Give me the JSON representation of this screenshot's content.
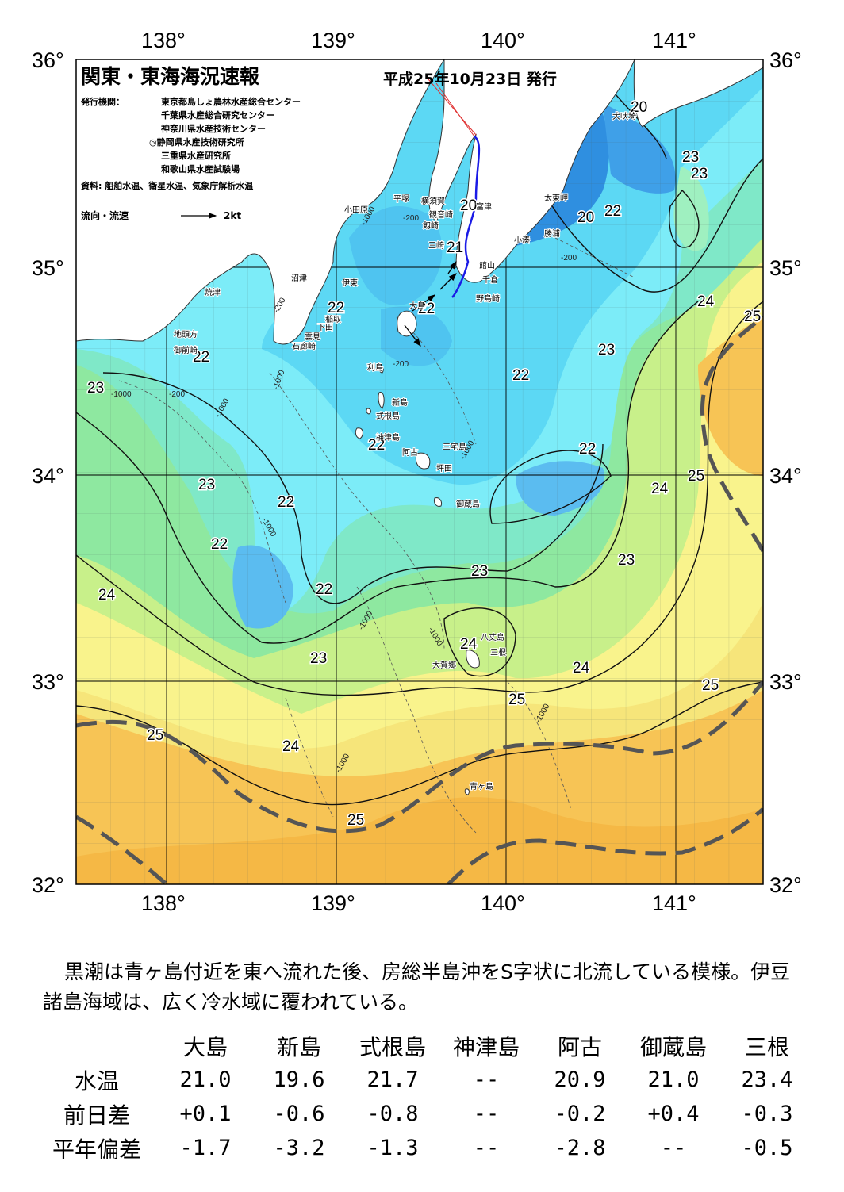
{
  "map": {
    "title": "関東・東海海況速報",
    "issue_date": "平成25年10月23日 発行",
    "issuers_label": "発行機関：",
    "issuers": [
      "東京都島しょ農林水産総合センター",
      "千葉県水産総合研究センター",
      "神奈川県水産技術センター",
      "◎静岡県水産技術研究所",
      "三重県水産研究所",
      "和歌山県水産試験場"
    ],
    "sources": "資料: 船舶水温、衛星水温、気象庁解析水温",
    "flow_legend_label": "流向・流速",
    "flow_legend_unit": "2kt",
    "lon_labels": [
      "138°",
      "139°",
      "140°",
      "141°"
    ],
    "lat_labels": [
      "36°",
      "35°",
      "34°",
      "33°",
      "32°"
    ],
    "isotherm_labels": [
      "20",
      "20",
      "20",
      "21",
      "22",
      "22",
      "22",
      "22",
      "22",
      "22",
      "22",
      "22",
      "22",
      "23",
      "23",
      "23",
      "23",
      "23",
      "23",
      "23",
      "23",
      "24",
      "24",
      "24",
      "24",
      "24",
      "24",
      "25",
      "25",
      "25",
      "25",
      "25",
      "25"
    ],
    "depth_labels": [
      "-200",
      "-1000",
      "-200",
      "-1000",
      "-200",
      "-1000",
      "-1000",
      "-200",
      "-1000",
      "-1000",
      "-1000",
      "-1000",
      "-1000",
      "-1000",
      "-200"
    ],
    "places": [
      "犬吠埼",
      "太東岬",
      "勝浦",
      "小湊",
      "富津",
      "観音崎",
      "剱崎",
      "三崎",
      "横須賀",
      "平塚",
      "小田原",
      "館山",
      "千倉",
      "野島崎",
      "沼津",
      "伊東",
      "稲取",
      "下田",
      "雲見",
      "石廊崎",
      "焼津",
      "地頭方",
      "御前崎",
      "大島",
      "利島",
      "新島",
      "式根島",
      "神津島",
      "阿古",
      "三宅島",
      "坪田",
      "御蔵島",
      "八丈島",
      "三根",
      "大賀郷",
      "青ヶ島"
    ],
    "colors": {
      "cold": "#2f8fe0",
      "cool": "#7cecf8",
      "mid": "#8ee8a0",
      "warm": "#f6f080",
      "hot": "#f7c455",
      "land": "#ffffff",
      "kuroshio_axis": "#555555",
      "ship_track": "#1a1ae6"
    }
  },
  "summary": "黒潮は青ヶ島付近を東へ流れた後、房総半島沖をS字状に北流している模様。伊豆諸島海域は、広く冷水域に覆われている。",
  "table": {
    "columns": [
      "大島",
      "新島",
      "式根島",
      "神津島",
      "阿古",
      "御蔵島",
      "三根"
    ],
    "rows": [
      {
        "label": "水温",
        "values": [
          "21.0",
          "19.6",
          "21.7",
          "--",
          "20.9",
          "21.0",
          "23.4"
        ]
      },
      {
        "label": "前日差",
        "values": [
          "+0.1",
          "-0.6",
          "-0.8",
          "--",
          "-0.2",
          "+0.4",
          "-0.3"
        ]
      },
      {
        "label": "平年偏差",
        "values": [
          "-1.7",
          "-3.2",
          "-1.3",
          "--",
          "-2.8",
          "--",
          "-0.5"
        ]
      }
    ]
  }
}
